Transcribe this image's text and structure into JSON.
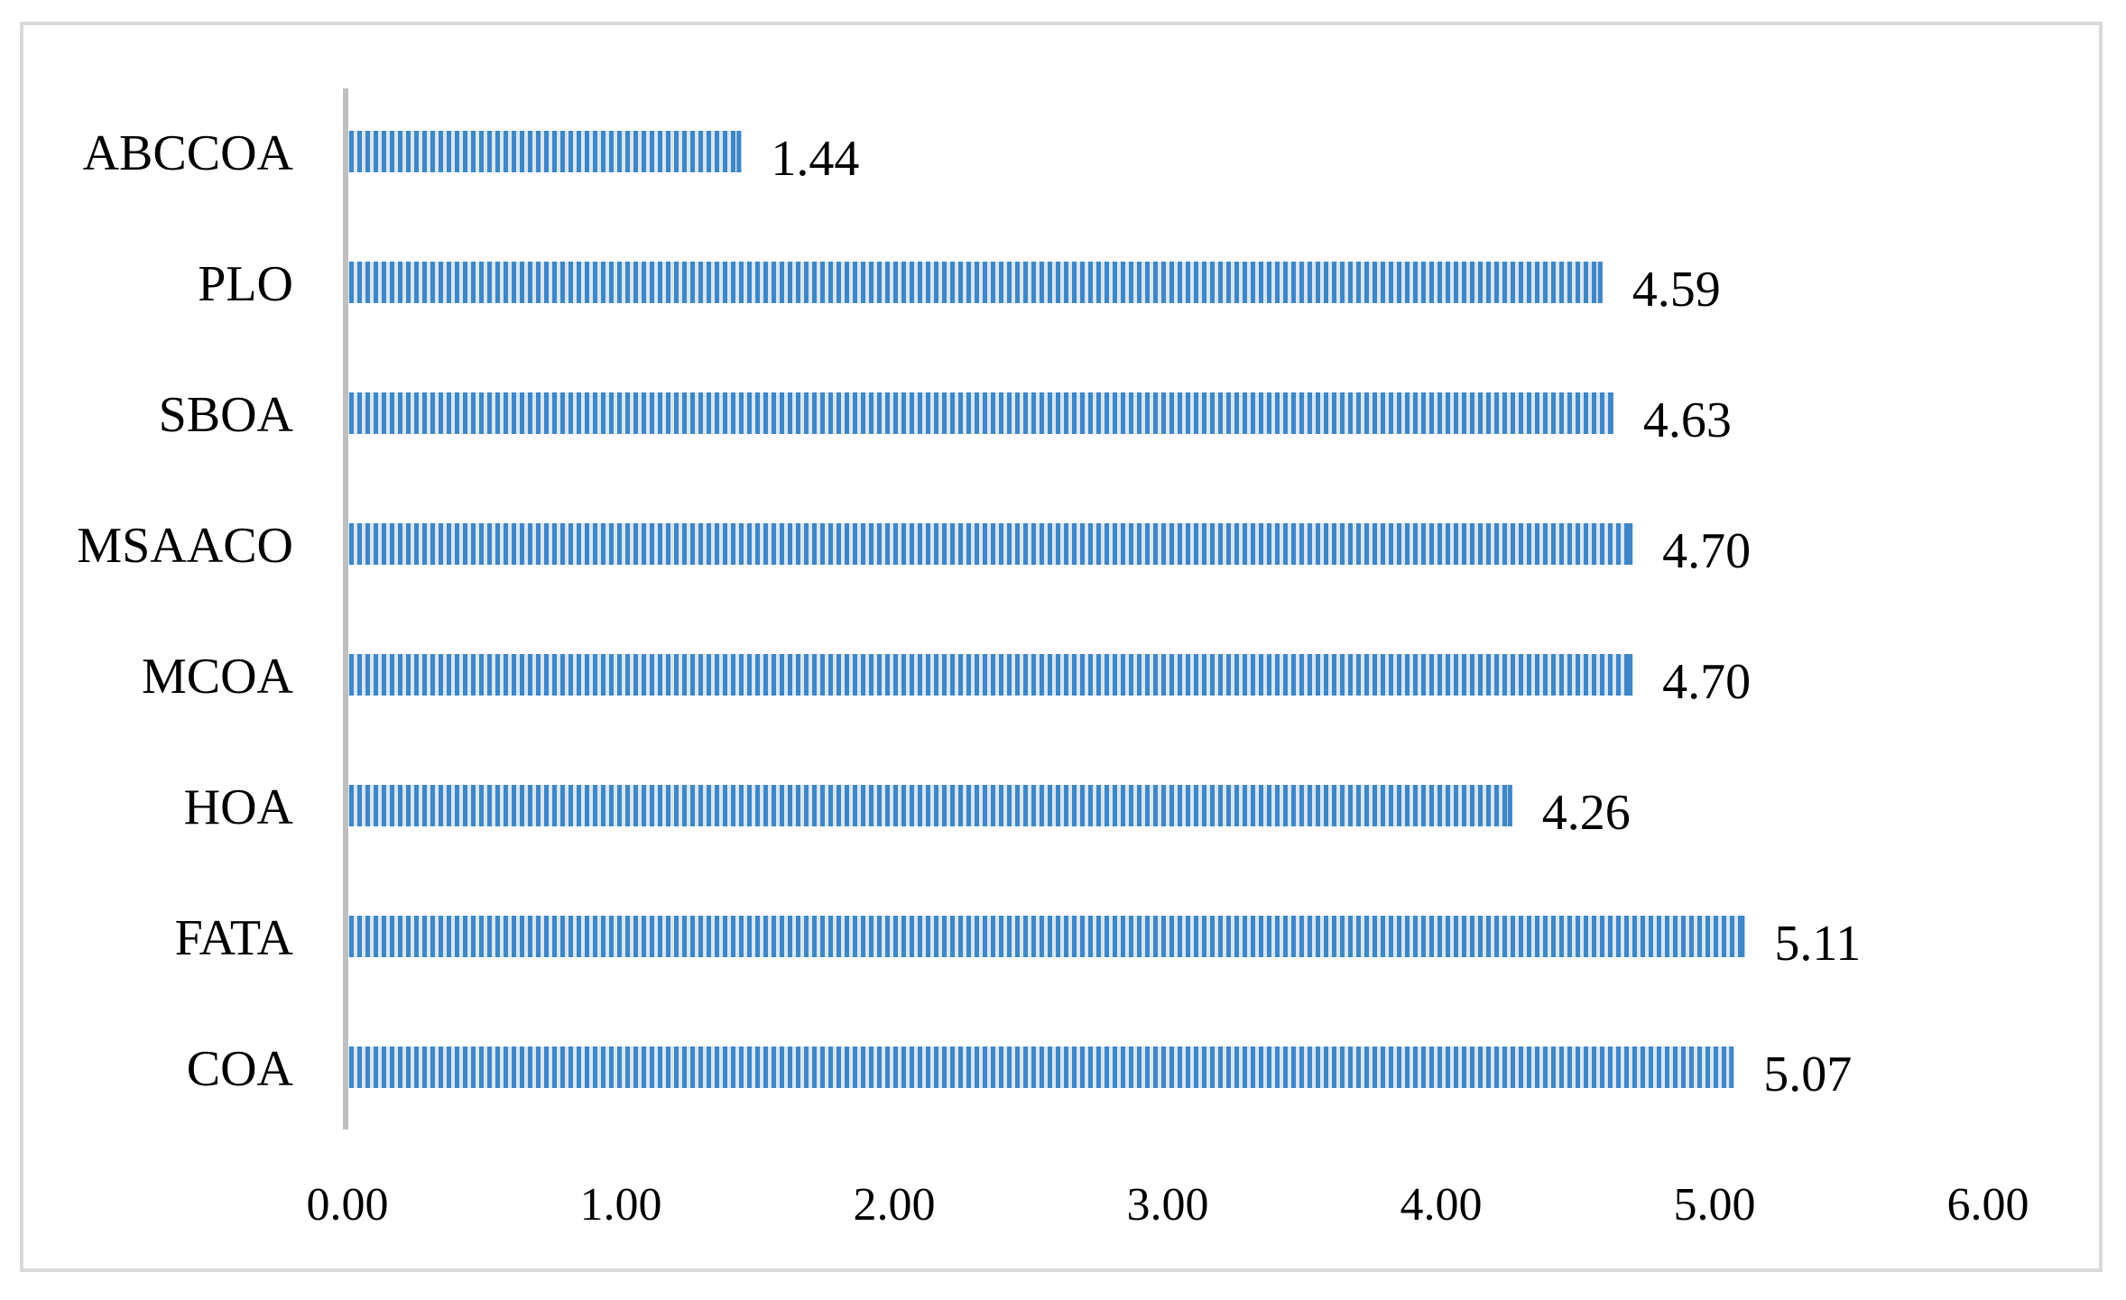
{
  "chart_data": {
    "type": "bar",
    "orientation": "horizontal",
    "categories": [
      "ABCCOA",
      "PLO",
      "SBOA",
      "MSAACO",
      "MCOA",
      "HOA",
      "FATA",
      "COA"
    ],
    "values": [
      1.44,
      4.59,
      4.63,
      4.7,
      4.7,
      4.26,
      5.11,
      5.07
    ],
    "value_labels": [
      "1.44",
      "4.59",
      "4.63",
      "4.70",
      "4.70",
      "4.26",
      "5.11",
      "5.07"
    ],
    "xlim": [
      0,
      6
    ],
    "xticks": [
      0,
      1,
      2,
      3,
      4,
      5,
      6
    ],
    "xtick_labels": [
      "0.00",
      "1.00",
      "2.00",
      "3.00",
      "4.00",
      "5.00",
      "6.00"
    ],
    "title": "",
    "xlabel": "",
    "ylabel": "",
    "grid": false,
    "legend": "none",
    "colors": {
      "bar_dark": "#3f86c6",
      "bar_light": "#d6e6f5",
      "axis": "#bfbfbf",
      "frame": "#d9d9d9"
    }
  }
}
